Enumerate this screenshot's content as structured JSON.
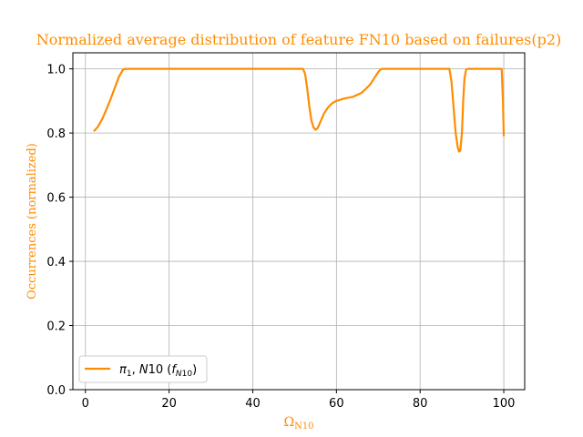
{
  "chart_data": {
    "type": "line",
    "title": "Normalized average distribution of feature FN10 based on failures(p2)",
    "xlabel": "Ω_N10",
    "ylabel": "Occurrences (normalized)",
    "xlim": [
      -3,
      105
    ],
    "ylim": [
      0,
      1.05
    ],
    "xticks": [
      0,
      20,
      40,
      60,
      80,
      100
    ],
    "yticks": [
      0.0,
      0.2,
      0.4,
      0.6,
      0.8,
      1.0
    ],
    "xtick_labels": [
      "0",
      "20",
      "40",
      "60",
      "80",
      "100"
    ],
    "ytick_labels": [
      "0.0",
      "0.2",
      "0.4",
      "0.6",
      "0.8",
      "1.0"
    ],
    "grid": true,
    "legend_position": "lower-left",
    "series": [
      {
        "name": "π1, N10 (fN10)",
        "color": "#ff8c00",
        "x": [
          2,
          3,
          4,
          5,
          6,
          7,
          8,
          9,
          9.8,
          10,
          20,
          30,
          40,
          50,
          52,
          52.5,
          53,
          53.5,
          54,
          54.5,
          55,
          55.5,
          56,
          57,
          58,
          59,
          60,
          62,
          64,
          66,
          68,
          69,
          70,
          70.5,
          71,
          75,
          80,
          85,
          87,
          87.5,
          88,
          88.5,
          89,
          89.3,
          89.6,
          90,
          90.3,
          90.6,
          91,
          91.5,
          92,
          95,
          99.5,
          99.8,
          100
        ],
        "y": [
          0.805,
          0.82,
          0.843,
          0.873,
          0.905,
          0.94,
          0.975,
          0.998,
          1.0,
          1.0,
          1.0,
          1.0,
          1.0,
          1.0,
          1.0,
          0.985,
          0.94,
          0.885,
          0.84,
          0.818,
          0.81,
          0.815,
          0.83,
          0.86,
          0.88,
          0.893,
          0.9,
          0.908,
          0.913,
          0.925,
          0.95,
          0.97,
          0.99,
          0.998,
          1.0,
          1.0,
          1.0,
          1.0,
          1.0,
          0.96,
          0.88,
          0.8,
          0.755,
          0.742,
          0.745,
          0.8,
          0.9,
          0.97,
          0.998,
          1.0,
          1.0,
          1.0,
          1.0,
          0.9,
          0.79
        ]
      }
    ]
  }
}
